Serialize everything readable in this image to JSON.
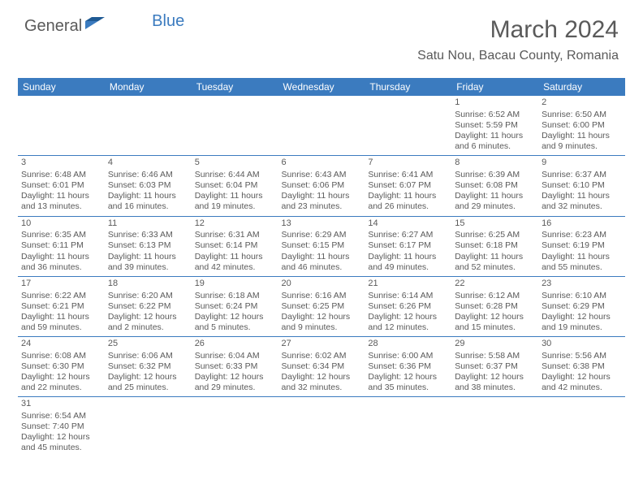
{
  "logo": {
    "text1": "General",
    "text2": "Blue"
  },
  "title": "March 2024",
  "location": "Satu Nou, Bacau County, Romania",
  "days": [
    "Sunday",
    "Monday",
    "Tuesday",
    "Wednesday",
    "Thursday",
    "Friday",
    "Saturday"
  ],
  "style": {
    "header_bg": "#3b7bbf",
    "header_fg": "#ffffff",
    "text_color": "#5a5a5a",
    "border_color": "#3b7bbf",
    "title_fontsize": 30,
    "location_fontsize": 16,
    "dayheader_fontsize": 12,
    "cell_fontsize": 10.5
  },
  "weeks": [
    [
      null,
      null,
      null,
      null,
      null,
      {
        "n": "1",
        "sr": "Sunrise: 6:52 AM",
        "ss": "Sunset: 5:59 PM",
        "d1": "Daylight: 11 hours",
        "d2": "and 6 minutes."
      },
      {
        "n": "2",
        "sr": "Sunrise: 6:50 AM",
        "ss": "Sunset: 6:00 PM",
        "d1": "Daylight: 11 hours",
        "d2": "and 9 minutes."
      }
    ],
    [
      {
        "n": "3",
        "sr": "Sunrise: 6:48 AM",
        "ss": "Sunset: 6:01 PM",
        "d1": "Daylight: 11 hours",
        "d2": "and 13 minutes."
      },
      {
        "n": "4",
        "sr": "Sunrise: 6:46 AM",
        "ss": "Sunset: 6:03 PM",
        "d1": "Daylight: 11 hours",
        "d2": "and 16 minutes."
      },
      {
        "n": "5",
        "sr": "Sunrise: 6:44 AM",
        "ss": "Sunset: 6:04 PM",
        "d1": "Daylight: 11 hours",
        "d2": "and 19 minutes."
      },
      {
        "n": "6",
        "sr": "Sunrise: 6:43 AM",
        "ss": "Sunset: 6:06 PM",
        "d1": "Daylight: 11 hours",
        "d2": "and 23 minutes."
      },
      {
        "n": "7",
        "sr": "Sunrise: 6:41 AM",
        "ss": "Sunset: 6:07 PM",
        "d1": "Daylight: 11 hours",
        "d2": "and 26 minutes."
      },
      {
        "n": "8",
        "sr": "Sunrise: 6:39 AM",
        "ss": "Sunset: 6:08 PM",
        "d1": "Daylight: 11 hours",
        "d2": "and 29 minutes."
      },
      {
        "n": "9",
        "sr": "Sunrise: 6:37 AM",
        "ss": "Sunset: 6:10 PM",
        "d1": "Daylight: 11 hours",
        "d2": "and 32 minutes."
      }
    ],
    [
      {
        "n": "10",
        "sr": "Sunrise: 6:35 AM",
        "ss": "Sunset: 6:11 PM",
        "d1": "Daylight: 11 hours",
        "d2": "and 36 minutes."
      },
      {
        "n": "11",
        "sr": "Sunrise: 6:33 AM",
        "ss": "Sunset: 6:13 PM",
        "d1": "Daylight: 11 hours",
        "d2": "and 39 minutes."
      },
      {
        "n": "12",
        "sr": "Sunrise: 6:31 AM",
        "ss": "Sunset: 6:14 PM",
        "d1": "Daylight: 11 hours",
        "d2": "and 42 minutes."
      },
      {
        "n": "13",
        "sr": "Sunrise: 6:29 AM",
        "ss": "Sunset: 6:15 PM",
        "d1": "Daylight: 11 hours",
        "d2": "and 46 minutes."
      },
      {
        "n": "14",
        "sr": "Sunrise: 6:27 AM",
        "ss": "Sunset: 6:17 PM",
        "d1": "Daylight: 11 hours",
        "d2": "and 49 minutes."
      },
      {
        "n": "15",
        "sr": "Sunrise: 6:25 AM",
        "ss": "Sunset: 6:18 PM",
        "d1": "Daylight: 11 hours",
        "d2": "and 52 minutes."
      },
      {
        "n": "16",
        "sr": "Sunrise: 6:23 AM",
        "ss": "Sunset: 6:19 PM",
        "d1": "Daylight: 11 hours",
        "d2": "and 55 minutes."
      }
    ],
    [
      {
        "n": "17",
        "sr": "Sunrise: 6:22 AM",
        "ss": "Sunset: 6:21 PM",
        "d1": "Daylight: 11 hours",
        "d2": "and 59 minutes."
      },
      {
        "n": "18",
        "sr": "Sunrise: 6:20 AM",
        "ss": "Sunset: 6:22 PM",
        "d1": "Daylight: 12 hours",
        "d2": "and 2 minutes."
      },
      {
        "n": "19",
        "sr": "Sunrise: 6:18 AM",
        "ss": "Sunset: 6:24 PM",
        "d1": "Daylight: 12 hours",
        "d2": "and 5 minutes."
      },
      {
        "n": "20",
        "sr": "Sunrise: 6:16 AM",
        "ss": "Sunset: 6:25 PM",
        "d1": "Daylight: 12 hours",
        "d2": "and 9 minutes."
      },
      {
        "n": "21",
        "sr": "Sunrise: 6:14 AM",
        "ss": "Sunset: 6:26 PM",
        "d1": "Daylight: 12 hours",
        "d2": "and 12 minutes."
      },
      {
        "n": "22",
        "sr": "Sunrise: 6:12 AM",
        "ss": "Sunset: 6:28 PM",
        "d1": "Daylight: 12 hours",
        "d2": "and 15 minutes."
      },
      {
        "n": "23",
        "sr": "Sunrise: 6:10 AM",
        "ss": "Sunset: 6:29 PM",
        "d1": "Daylight: 12 hours",
        "d2": "and 19 minutes."
      }
    ],
    [
      {
        "n": "24",
        "sr": "Sunrise: 6:08 AM",
        "ss": "Sunset: 6:30 PM",
        "d1": "Daylight: 12 hours",
        "d2": "and 22 minutes."
      },
      {
        "n": "25",
        "sr": "Sunrise: 6:06 AM",
        "ss": "Sunset: 6:32 PM",
        "d1": "Daylight: 12 hours",
        "d2": "and 25 minutes."
      },
      {
        "n": "26",
        "sr": "Sunrise: 6:04 AM",
        "ss": "Sunset: 6:33 PM",
        "d1": "Daylight: 12 hours",
        "d2": "and 29 minutes."
      },
      {
        "n": "27",
        "sr": "Sunrise: 6:02 AM",
        "ss": "Sunset: 6:34 PM",
        "d1": "Daylight: 12 hours",
        "d2": "and 32 minutes."
      },
      {
        "n": "28",
        "sr": "Sunrise: 6:00 AM",
        "ss": "Sunset: 6:36 PM",
        "d1": "Daylight: 12 hours",
        "d2": "and 35 minutes."
      },
      {
        "n": "29",
        "sr": "Sunrise: 5:58 AM",
        "ss": "Sunset: 6:37 PM",
        "d1": "Daylight: 12 hours",
        "d2": "and 38 minutes."
      },
      {
        "n": "30",
        "sr": "Sunrise: 5:56 AM",
        "ss": "Sunset: 6:38 PM",
        "d1": "Daylight: 12 hours",
        "d2": "and 42 minutes."
      }
    ],
    [
      {
        "n": "31",
        "sr": "Sunrise: 6:54 AM",
        "ss": "Sunset: 7:40 PM",
        "d1": "Daylight: 12 hours",
        "d2": "and 45 minutes."
      },
      null,
      null,
      null,
      null,
      null,
      null
    ]
  ]
}
